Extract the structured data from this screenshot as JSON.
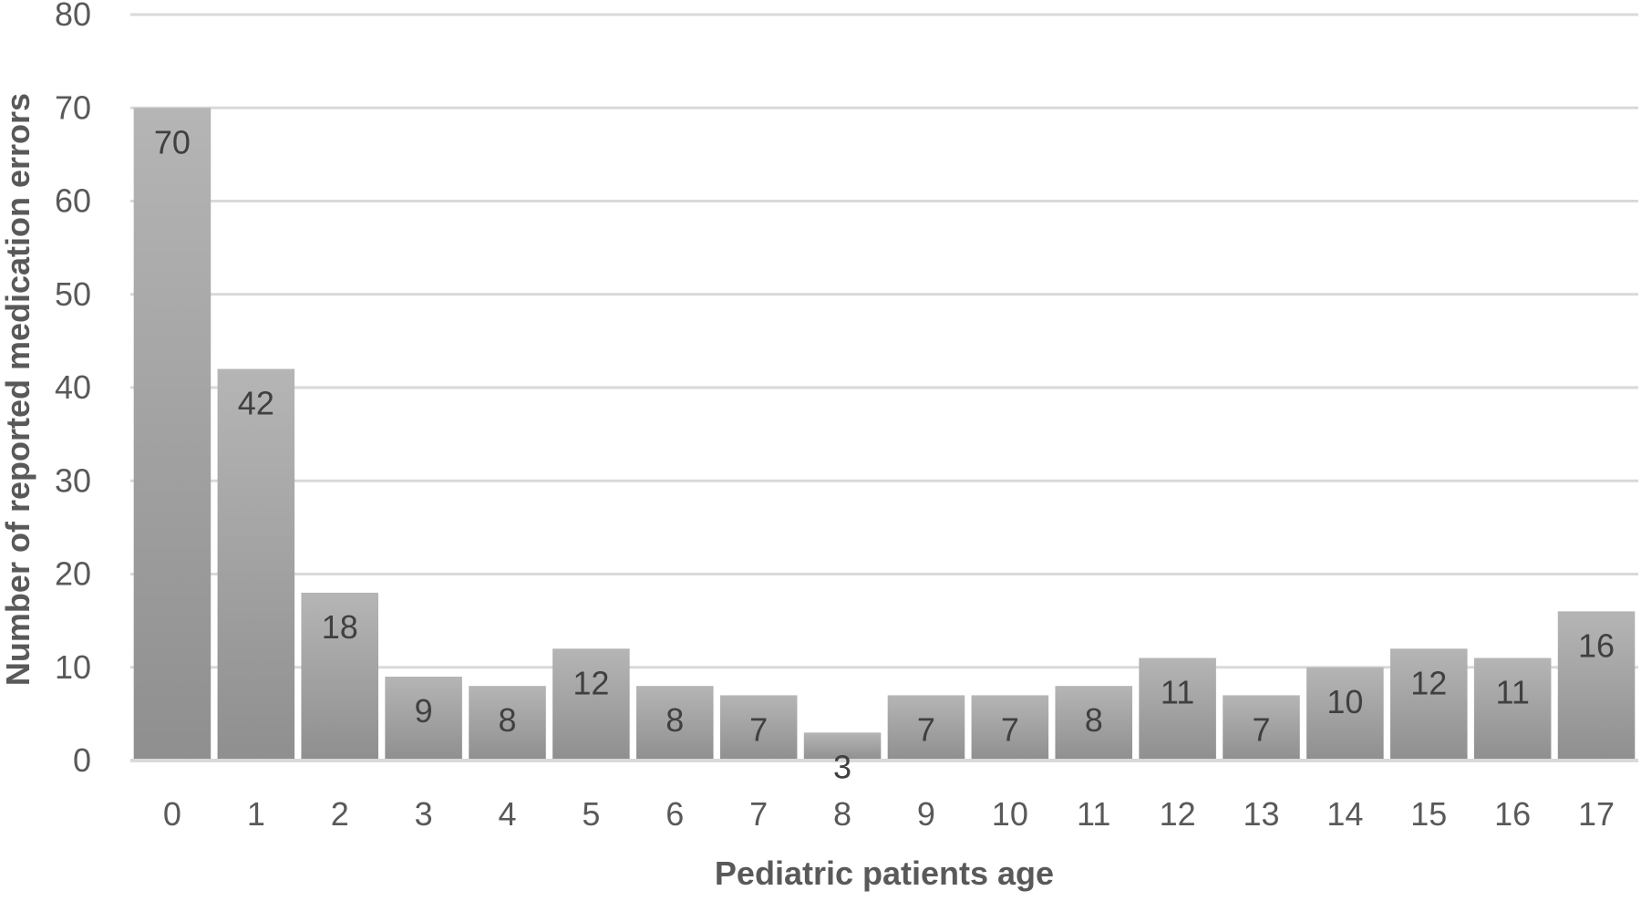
{
  "chart_data": {
    "type": "bar",
    "title": "",
    "xlabel": "Pediatric patients age",
    "ylabel": "Number of reported medication errors",
    "categories": [
      "0",
      "1",
      "2",
      "3",
      "4",
      "5",
      "6",
      "7",
      "8",
      "9",
      "10",
      "11",
      "12",
      "13",
      "14",
      "15",
      "16",
      "17"
    ],
    "values": [
      70,
      42,
      18,
      9,
      8,
      12,
      8,
      7,
      3,
      7,
      7,
      8,
      11,
      7,
      10,
      12,
      11,
      16
    ],
    "ylim": [
      0,
      80
    ],
    "yticks": [
      0,
      10,
      20,
      30,
      40,
      50,
      60,
      70,
      80
    ],
    "grid": true,
    "legend": "none",
    "data_labels": "inside-end",
    "colors": {
      "bar_top": "#b5b5b5",
      "bar_bottom": "#8f8f8f",
      "grid": "#d9d9d9",
      "axis": "#d9d9d9",
      "tick_text": "#595959",
      "label_text": "#404040"
    }
  }
}
